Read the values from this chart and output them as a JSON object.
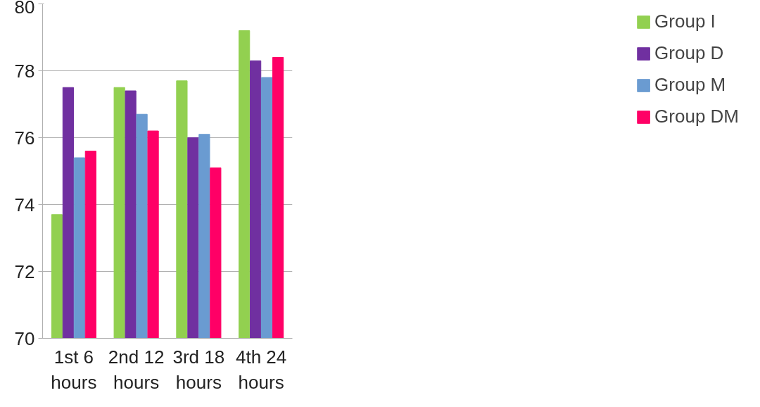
{
  "chart_data": {
    "type": "bar",
    "categories": [
      "1st 6\nhours",
      "2nd 12\nhours",
      "3rd 18\nhours",
      "4th 24\nhours"
    ],
    "series": [
      {
        "name": "Group I",
        "color": "#92d050",
        "values": [
          73.7,
          77.5,
          77.7,
          79.2
        ]
      },
      {
        "name": "Group D",
        "color": "#7030a0",
        "values": [
          77.5,
          77.4,
          76.0,
          78.3
        ]
      },
      {
        "name": "Group M",
        "color": "#6a9bd1",
        "values": [
          75.4,
          76.7,
          76.1,
          77.8
        ]
      },
      {
        "name": "Group DM",
        "color": "#ff0066",
        "values": [
          75.6,
          76.2,
          75.1,
          78.4
        ]
      }
    ],
    "ylim": [
      70,
      80
    ],
    "yticks": [
      70,
      72,
      74,
      76,
      78,
      80
    ],
    "grid": "y",
    "legend": "right"
  }
}
